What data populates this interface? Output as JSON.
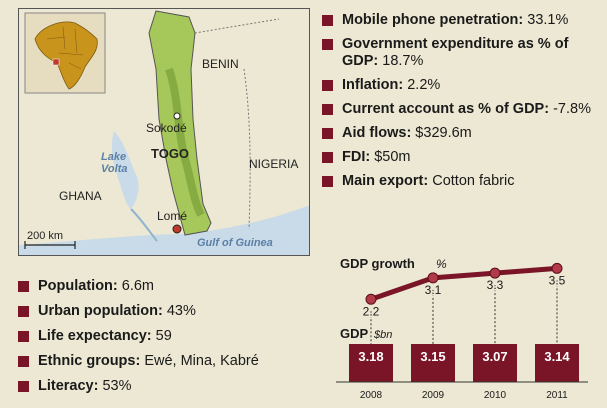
{
  "map": {
    "labels": {
      "benin": "BENIN",
      "sokode": "Sokodé",
      "togo": "TOGO",
      "lake_volta": "Lake Volta",
      "nigeria": "NIGERIA",
      "ghana": "GHANA",
      "lome": "Lomé",
      "gulf": "Gulf of Guinea",
      "scale": "200 km"
    },
    "colors": {
      "togo": "#a6c75a",
      "water": "#c9dbe8",
      "land": "#ece8d3",
      "africa": "#c9941c",
      "capital": "#c0392b"
    }
  },
  "facts_right": [
    {
      "label": "Mobile phone penetration:",
      "value": " 33.1%"
    },
    {
      "label": "Government expenditure as % of GDP:",
      "value": " 18.7%"
    },
    {
      "label": "Inflation:",
      "value": " 2.2%"
    },
    {
      "label": "Current account as % of GDP:",
      "value": " -7.8%"
    },
    {
      "label": "Aid flows:",
      "value": " $329.6m"
    },
    {
      "label": "FDI:",
      "value": " $50m"
    },
    {
      "label": "Main export:",
      "value": " Cotton fabric"
    }
  ],
  "facts_left": [
    {
      "label": "Population:",
      "value": " 6.6m"
    },
    {
      "label": "Urban population:",
      "value": " 43%"
    },
    {
      "label": "Life expectancy:",
      "value": " 59"
    },
    {
      "label": "Ethnic groups:",
      "value": " Ewé, Mina, Kabré"
    },
    {
      "label": "Literacy:",
      "value": " 53%"
    }
  ],
  "chart_data": {
    "type": "bar",
    "categories": [
      "2008",
      "2009",
      "2010",
      "2011"
    ],
    "series": [
      {
        "name": "GDP",
        "unit": "$bn",
        "values": [
          3.18,
          3.15,
          3.07,
          3.14
        ]
      },
      {
        "name": "GDP growth",
        "unit": "%",
        "values": [
          2.2,
          3.1,
          3.3,
          3.5
        ]
      }
    ],
    "labels": [
      "3.18",
      "3.15",
      "3.07",
      "3.14"
    ],
    "growth_labels": [
      "2.2",
      "3.1",
      "3.3",
      "3.5"
    ],
    "growth_title": "GDP growth",
    "growth_unit": "%",
    "gdp_title": "GDP",
    "gdp_unit": "$bn",
    "colors": {
      "bar": "#7a1527",
      "line": "#7a1527"
    }
  }
}
